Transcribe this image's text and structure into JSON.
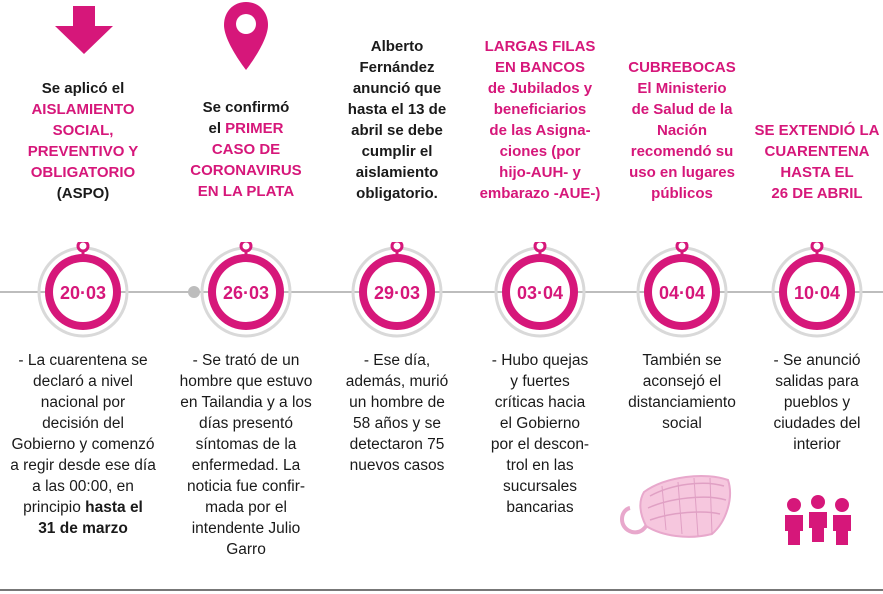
{
  "colors": {
    "accent": "#d6177a",
    "line": "#bdbdbd"
  },
  "events": [
    {
      "date": "20·03",
      "icon": "down-arrow-icon",
      "headline": [
        {
          "text": "Se aplicó el",
          "accent": false
        },
        {
          "text": "AISLAMIENTO",
          "accent": true
        },
        {
          "text": "SOCIAL,",
          "accent": true
        },
        {
          "text": "PREVENTIVO Y",
          "accent": true
        },
        {
          "text": "OBLIGATORIO",
          "accent": true
        },
        {
          "text": "(ASPO)",
          "accent": false
        }
      ],
      "description": [
        {
          "text": "- La cuarentena se",
          "bold": false
        },
        {
          "text": "declaró a nivel",
          "bold": false
        },
        {
          "text": "nacional por",
          "bold": false
        },
        {
          "text": "decisión del",
          "bold": false
        },
        {
          "text": "Gobierno y  comenzó",
          "bold": false
        },
        {
          "text": "a regir desde ese día",
          "bold": false
        },
        {
          "text": "a las 00:00, en",
          "bold": false
        },
        {
          "text": "principio ",
          "bold": false,
          "bold_tail": "hasta el"
        },
        {
          "text": "31 de marzo",
          "bold": true
        }
      ]
    },
    {
      "date": "26·03",
      "icon": "map-pin-icon",
      "headline": [
        {
          "text": "Se confirmó",
          "accent": false
        },
        {
          "text": "el ",
          "accent": false,
          "accent_tail": "PRIMER"
        },
        {
          "text": "CASO DE",
          "accent": true
        },
        {
          "text": "CORONAVIRUS",
          "accent": true
        },
        {
          "text": "EN LA PLATA",
          "accent": true
        }
      ],
      "description": [
        {
          "text": "- Se trató de un",
          "bold": false
        },
        {
          "text": "hombre que estuvo",
          "bold": false
        },
        {
          "text": "en Tailandia y a los",
          "bold": false
        },
        {
          "text": "días presentó",
          "bold": false
        },
        {
          "text": "síntomas de la",
          "bold": false
        },
        {
          "text": "enfermedad. La",
          "bold": false
        },
        {
          "text": "noticia fue confir-",
          "bold": false
        },
        {
          "text": "mada por el",
          "bold": false
        },
        {
          "text": "intendente Julio",
          "bold": false
        },
        {
          "text": "Garro",
          "bold": false
        }
      ]
    },
    {
      "date": "29·03",
      "icon": "",
      "headline": [
        {
          "text": "Alberto",
          "accent": false
        },
        {
          "text": "Fernández",
          "accent": false
        },
        {
          "text": "anunció que",
          "accent": false
        },
        {
          "text": "hasta el 13 de",
          "accent": false
        },
        {
          "text": "abril se debe",
          "accent": false
        },
        {
          "text": "cumplir el",
          "accent": false
        },
        {
          "text": "aislamiento",
          "accent": false
        },
        {
          "text": "obligatorio.",
          "accent": false
        }
      ],
      "description": [
        {
          "text": "- Ese día,",
          "bold": false
        },
        {
          "text": "además, murió",
          "bold": false
        },
        {
          "text": "un hombre de",
          "bold": false
        },
        {
          "text": "58 años y se",
          "bold": false
        },
        {
          "text": "detectaron 75",
          "bold": false
        },
        {
          "text": "nuevos casos",
          "bold": false
        }
      ]
    },
    {
      "date": "03·04",
      "icon": "",
      "headline": [
        {
          "text": "LARGAS FILAS",
          "accent": true
        },
        {
          "text": "EN BANCOS",
          "accent": true
        },
        {
          "text": "de Jubilados y",
          "accent": true
        },
        {
          "text": "beneficiarios",
          "accent": true
        },
        {
          "text": "de las Asigna-",
          "accent": true
        },
        {
          "text": "ciones (por",
          "accent": true
        },
        {
          "text": "hijo-AUH- y",
          "accent": true
        },
        {
          "text": "embarazo -AUE-)",
          "accent": true
        }
      ],
      "description": [
        {
          "text": "- Hubo quejas",
          "bold": false
        },
        {
          "text": "y fuertes",
          "bold": false
        },
        {
          "text": "críticas hacia",
          "bold": false
        },
        {
          "text": "el Gobierno",
          "bold": false
        },
        {
          "text": "por el descon-",
          "bold": false
        },
        {
          "text": "trol en las",
          "bold": false
        },
        {
          "text": "sucursales",
          "bold": false
        },
        {
          "text": "bancarias",
          "bold": false
        }
      ]
    },
    {
      "date": "04·04",
      "icon": "face-mask-icon",
      "headline": [
        {
          "text": "CUBREBOCAS",
          "accent": true
        },
        {
          "text": "El Ministerio",
          "accent": true
        },
        {
          "text": "de Salud de la",
          "accent": true
        },
        {
          "text": "Nación",
          "accent": true
        },
        {
          "text": "recomendó su",
          "accent": true
        },
        {
          "text": "uso en lugares",
          "accent": true
        },
        {
          "text": "públicos",
          "accent": true
        }
      ],
      "description": [
        {
          "text": "También se",
          "bold": false
        },
        {
          "text": "aconsejó el",
          "bold": false
        },
        {
          "text": "distanciamiento",
          "bold": false
        },
        {
          "text": "social",
          "bold": false
        }
      ]
    },
    {
      "date": "10·04",
      "icon": "people-icon",
      "headline": [
        {
          "text": "SE EXTENDIÓ LA",
          "accent": true
        },
        {
          "text": "CUARENTENA",
          "accent": true
        },
        {
          "text": "HASTA EL",
          "accent": true
        },
        {
          "text": "26 DE ABRIL",
          "accent": true
        }
      ],
      "description": [
        {
          "text": "- Se anunció",
          "bold": false
        },
        {
          "text": "salidas para",
          "bold": false
        },
        {
          "text": "pueblos y",
          "bold": false
        },
        {
          "text": "ciudades del",
          "bold": false
        },
        {
          "text": "interior",
          "bold": false
        }
      ]
    }
  ]
}
